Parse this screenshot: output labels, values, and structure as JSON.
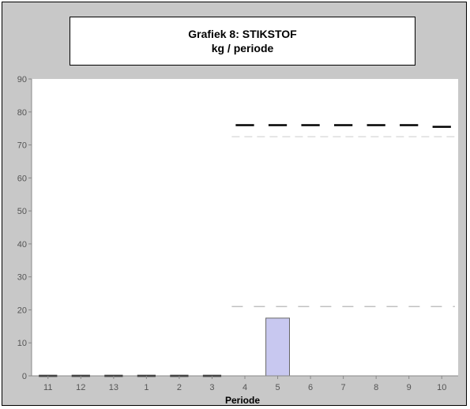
{
  "chart_data": {
    "type": "bar",
    "title": "Grafiek 8: STIKSTOF",
    "subtitle": "kg / periode",
    "xlabel": "Periode",
    "ylabel": "",
    "ylim": [
      0,
      90
    ],
    "yticks": [
      0,
      10,
      20,
      30,
      40,
      50,
      60,
      70,
      80,
      90
    ],
    "categories": [
      "11",
      "12",
      "13",
      "1",
      "2",
      "3",
      "4",
      "5",
      "6",
      "7",
      "8",
      "9",
      "10"
    ],
    "series": [
      {
        "values": [
          0,
          0,
          0,
          0,
          0,
          0,
          null,
          17.5,
          null,
          null,
          null,
          null,
          null
        ],
        "color": "#c8c8f0"
      }
    ],
    "markers_upper": [
      0,
      0,
      0,
      0,
      0,
      0,
      76,
      76,
      76,
      76,
      76,
      76,
      75.5
    ],
    "markers_upper_color": "#000000",
    "dashed_line_upper": {
      "y": 72.5,
      "from_category": "4",
      "to_category": "10",
      "color": "#dddddd"
    },
    "dashed_line_lower": {
      "y": 21,
      "from_category": "4",
      "to_category": "10",
      "color": "#c0c0c0"
    },
    "grid": false
  }
}
